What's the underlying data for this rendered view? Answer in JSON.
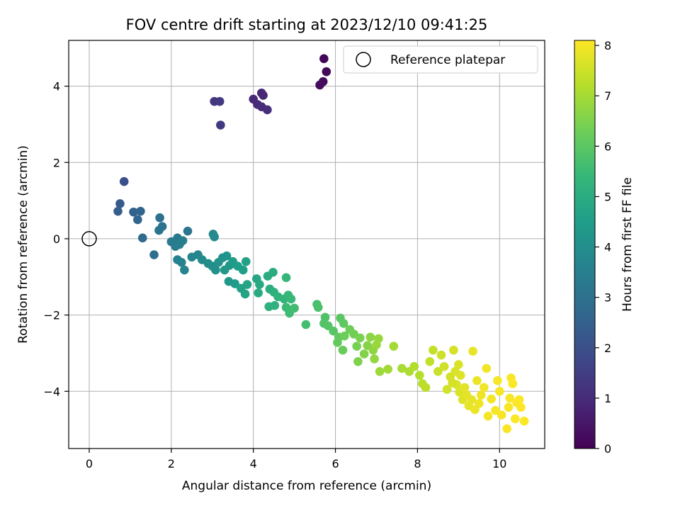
{
  "chart_data": {
    "type": "scatter",
    "title": "FOV centre drift starting at 2023/12/10 09:41:25",
    "xlabel": "Angular distance from reference (arcmin)",
    "ylabel": "Rotation from reference (arcmin)",
    "xlim": [
      -0.5,
      11.1
    ],
    "ylim": [
      -5.5,
      5.2
    ],
    "xticks": [
      0,
      2,
      4,
      6,
      8,
      10
    ],
    "yticks": [
      -4,
      -2,
      0,
      2,
      4
    ],
    "grid": true,
    "legend": {
      "placement": "top-right",
      "entries": [
        "Reference platepar"
      ]
    },
    "reference_point": {
      "x": 0,
      "y": 0
    },
    "colorbar": {
      "label": "Hours from first FF file",
      "colormap": "viridis",
      "range": [
        0,
        8.1
      ],
      "ticks": [
        0,
        1,
        2,
        3,
        4,
        5,
        6,
        7,
        8
      ],
      "colors": [
        "#440154",
        "#482878",
        "#3e4989",
        "#31688e",
        "#26828e",
        "#1f9e89",
        "#35b779",
        "#6ece58",
        "#b5de2b",
        "#fde725"
      ]
    },
    "points": [
      {
        "x": 5.72,
        "y": 4.72,
        "c": 0.1
      },
      {
        "x": 5.78,
        "y": 4.38,
        "c": 0.15
      },
      {
        "x": 5.7,
        "y": 4.12,
        "c": 0.2
      },
      {
        "x": 5.62,
        "y": 4.03,
        "c": 0.25
      },
      {
        "x": 4.2,
        "y": 3.82,
        "c": 0.8
      },
      {
        "x": 4.24,
        "y": 3.76,
        "c": 0.85
      },
      {
        "x": 4.0,
        "y": 3.66,
        "c": 0.9
      },
      {
        "x": 4.1,
        "y": 3.52,
        "c": 0.95
      },
      {
        "x": 4.2,
        "y": 3.46,
        "c": 1.0
      },
      {
        "x": 4.34,
        "y": 3.38,
        "c": 1.05
      },
      {
        "x": 3.05,
        "y": 3.6,
        "c": 1.3
      },
      {
        "x": 3.18,
        "y": 3.6,
        "c": 1.35
      },
      {
        "x": 3.2,
        "y": 2.98,
        "c": 1.4
      },
      {
        "x": 0.85,
        "y": 1.5,
        "c": 2.0
      },
      {
        "x": 0.75,
        "y": 0.92,
        "c": 2.3
      },
      {
        "x": 0.7,
        "y": 0.72,
        "c": 2.4
      },
      {
        "x": 1.08,
        "y": 0.7,
        "c": 2.5
      },
      {
        "x": 1.25,
        "y": 0.72,
        "c": 2.6
      },
      {
        "x": 1.18,
        "y": 0.5,
        "c": 2.65
      },
      {
        "x": 1.3,
        "y": 0.02,
        "c": 2.8
      },
      {
        "x": 1.58,
        "y": -0.42,
        "c": 2.9
      },
      {
        "x": 1.72,
        "y": 0.55,
        "c": 3.0
      },
      {
        "x": 1.78,
        "y": 0.32,
        "c": 3.05
      },
      {
        "x": 1.7,
        "y": 0.22,
        "c": 3.1
      },
      {
        "x": 2.4,
        "y": 0.2,
        "c": 3.2
      },
      {
        "x": 2.15,
        "y": 0.02,
        "c": 3.3
      },
      {
        "x": 2.0,
        "y": -0.08,
        "c": 3.35
      },
      {
        "x": 2.1,
        "y": -0.2,
        "c": 3.4
      },
      {
        "x": 2.2,
        "y": -0.15,
        "c": 3.45
      },
      {
        "x": 2.28,
        "y": -0.05,
        "c": 3.5
      },
      {
        "x": 2.15,
        "y": -0.55,
        "c": 3.55
      },
      {
        "x": 2.25,
        "y": -0.62,
        "c": 3.6
      },
      {
        "x": 2.32,
        "y": -0.82,
        "c": 3.65
      },
      {
        "x": 2.5,
        "y": -0.48,
        "c": 3.7
      },
      {
        "x": 2.65,
        "y": -0.42,
        "c": 3.75
      },
      {
        "x": 3.02,
        "y": 0.12,
        "c": 3.8
      },
      {
        "x": 3.05,
        "y": 0.05,
        "c": 3.85
      },
      {
        "x": 2.75,
        "y": -0.55,
        "c": 3.9
      },
      {
        "x": 2.9,
        "y": -0.65,
        "c": 3.95
      },
      {
        "x": 3.0,
        "y": -0.72,
        "c": 4.0
      },
      {
        "x": 3.08,
        "y": -0.82,
        "c": 4.05
      },
      {
        "x": 3.15,
        "y": -0.62,
        "c": 4.1
      },
      {
        "x": 3.25,
        "y": -0.5,
        "c": 4.15
      },
      {
        "x": 3.35,
        "y": -0.45,
        "c": 4.2
      },
      {
        "x": 3.42,
        "y": -0.7,
        "c": 4.25
      },
      {
        "x": 3.3,
        "y": -0.82,
        "c": 4.3
      },
      {
        "x": 3.4,
        "y": -1.12,
        "c": 4.35
      },
      {
        "x": 3.55,
        "y": -1.18,
        "c": 4.4
      },
      {
        "x": 3.5,
        "y": -0.6,
        "c": 4.45
      },
      {
        "x": 3.62,
        "y": -0.72,
        "c": 4.5
      },
      {
        "x": 3.75,
        "y": -0.82,
        "c": 4.55
      },
      {
        "x": 3.82,
        "y": -0.6,
        "c": 4.6
      },
      {
        "x": 3.7,
        "y": -1.3,
        "c": 4.65
      },
      {
        "x": 3.8,
        "y": -1.45,
        "c": 4.7
      },
      {
        "x": 3.85,
        "y": -1.2,
        "c": 4.75
      },
      {
        "x": 4.08,
        "y": -1.05,
        "c": 4.8
      },
      {
        "x": 4.15,
        "y": -1.2,
        "c": 4.85
      },
      {
        "x": 4.12,
        "y": -1.42,
        "c": 4.9
      },
      {
        "x": 4.35,
        "y": -0.98,
        "c": 4.95
      },
      {
        "x": 4.48,
        "y": -0.88,
        "c": 5.0
      },
      {
        "x": 4.4,
        "y": -1.32,
        "c": 5.05
      },
      {
        "x": 4.5,
        "y": -1.4,
        "c": 5.1
      },
      {
        "x": 4.38,
        "y": -1.78,
        "c": 5.15
      },
      {
        "x": 4.52,
        "y": -1.75,
        "c": 5.2
      },
      {
        "x": 4.6,
        "y": -1.52,
        "c": 5.25
      },
      {
        "x": 4.75,
        "y": -1.58,
        "c": 5.3
      },
      {
        "x": 4.8,
        "y": -1.02,
        "c": 5.35
      },
      {
        "x": 4.85,
        "y": -1.48,
        "c": 5.4
      },
      {
        "x": 4.92,
        "y": -1.58,
        "c": 5.45
      },
      {
        "x": 4.8,
        "y": -1.8,
        "c": 5.5
      },
      {
        "x": 4.88,
        "y": -1.95,
        "c": 5.55
      },
      {
        "x": 5.0,
        "y": -1.82,
        "c": 5.6
      },
      {
        "x": 5.28,
        "y": -2.25,
        "c": 5.65
      },
      {
        "x": 5.55,
        "y": -1.72,
        "c": 5.7
      },
      {
        "x": 5.58,
        "y": -1.8,
        "c": 5.75
      },
      {
        "x": 5.75,
        "y": -2.06,
        "c": 5.8
      },
      {
        "x": 5.72,
        "y": -2.22,
        "c": 5.85
      },
      {
        "x": 5.82,
        "y": -2.28,
        "c": 5.9
      },
      {
        "x": 5.95,
        "y": -2.42,
        "c": 5.95
      },
      {
        "x": 6.12,
        "y": -2.08,
        "c": 6.0
      },
      {
        "x": 6.2,
        "y": -2.22,
        "c": 6.05
      },
      {
        "x": 6.08,
        "y": -2.58,
        "c": 6.1
      },
      {
        "x": 6.05,
        "y": -2.72,
        "c": 6.15
      },
      {
        "x": 6.18,
        "y": -2.92,
        "c": 6.2
      },
      {
        "x": 6.22,
        "y": -2.55,
        "c": 6.25
      },
      {
        "x": 6.35,
        "y": -2.38,
        "c": 6.3
      },
      {
        "x": 6.45,
        "y": -2.5,
        "c": 6.35
      },
      {
        "x": 6.52,
        "y": -2.82,
        "c": 6.4
      },
      {
        "x": 6.6,
        "y": -2.6,
        "c": 6.45
      },
      {
        "x": 6.55,
        "y": -3.22,
        "c": 6.5
      },
      {
        "x": 6.7,
        "y": -3.02,
        "c": 6.55
      },
      {
        "x": 6.78,
        "y": -2.8,
        "c": 6.6
      },
      {
        "x": 6.85,
        "y": -2.58,
        "c": 6.65
      },
      {
        "x": 6.92,
        "y": -2.92,
        "c": 6.7
      },
      {
        "x": 6.95,
        "y": -3.15,
        "c": 6.75
      },
      {
        "x": 7.05,
        "y": -2.62,
        "c": 6.8
      },
      {
        "x": 7.0,
        "y": -2.78,
        "c": 6.85
      },
      {
        "x": 7.08,
        "y": -3.48,
        "c": 6.9
      },
      {
        "x": 7.28,
        "y": -3.42,
        "c": 6.95
      },
      {
        "x": 7.42,
        "y": -2.82,
        "c": 7.0
      },
      {
        "x": 7.62,
        "y": -3.4,
        "c": 7.05
      },
      {
        "x": 7.8,
        "y": -3.48,
        "c": 7.1
      },
      {
        "x": 7.92,
        "y": -3.35,
        "c": 7.15
      },
      {
        "x": 8.05,
        "y": -3.58,
        "c": 7.2
      },
      {
        "x": 8.12,
        "y": -3.8,
        "c": 7.25
      },
      {
        "x": 8.2,
        "y": -3.9,
        "c": 7.3
      },
      {
        "x": 8.3,
        "y": -3.22,
        "c": 7.35
      },
      {
        "x": 8.38,
        "y": -2.92,
        "c": 7.4
      },
      {
        "x": 8.5,
        "y": -3.48,
        "c": 7.45
      },
      {
        "x": 8.58,
        "y": -3.05,
        "c": 7.5
      },
      {
        "x": 8.65,
        "y": -3.35,
        "c": 7.52
      },
      {
        "x": 8.72,
        "y": -3.95,
        "c": 7.55
      },
      {
        "x": 8.8,
        "y": -3.62,
        "c": 7.58
      },
      {
        "x": 8.88,
        "y": -2.92,
        "c": 7.6
      },
      {
        "x": 8.92,
        "y": -3.48,
        "c": 7.62
      },
      {
        "x": 8.95,
        "y": -3.82,
        "c": 7.65
      },
      {
        "x": 9.02,
        "y": -4.02,
        "c": 7.68
      },
      {
        "x": 9.05,
        "y": -3.58,
        "c": 7.7
      },
      {
        "x": 9.1,
        "y": -4.22,
        "c": 7.72
      },
      {
        "x": 9.15,
        "y": -3.9,
        "c": 7.75
      },
      {
        "x": 9.2,
        "y": -4.1,
        "c": 7.78
      },
      {
        "x": 9.25,
        "y": -4.38,
        "c": 7.8
      },
      {
        "x": 9.32,
        "y": -4.22,
        "c": 7.82
      },
      {
        "x": 9.35,
        "y": -2.95,
        "c": 7.84
      },
      {
        "x": 9.4,
        "y": -4.48,
        "c": 7.86
      },
      {
        "x": 9.45,
        "y": -3.72,
        "c": 7.88
      },
      {
        "x": 9.5,
        "y": -4.32,
        "c": 7.9
      },
      {
        "x": 9.55,
        "y": -4.1,
        "c": 7.92
      },
      {
        "x": 9.62,
        "y": -3.9,
        "c": 7.94
      },
      {
        "x": 9.68,
        "y": -3.4,
        "c": 7.95
      },
      {
        "x": 9.72,
        "y": -4.65,
        "c": 7.97
      },
      {
        "x": 9.8,
        "y": -4.2,
        "c": 7.98
      },
      {
        "x": 9.9,
        "y": -4.5,
        "c": 8.0
      },
      {
        "x": 9.95,
        "y": -3.72,
        "c": 8.0
      },
      {
        "x": 10.0,
        "y": -4.0,
        "c": 8.02
      },
      {
        "x": 10.05,
        "y": -4.62,
        "c": 8.02
      },
      {
        "x": 10.18,
        "y": -4.98,
        "c": 8.04
      },
      {
        "x": 10.22,
        "y": -4.42,
        "c": 8.04
      },
      {
        "x": 10.25,
        "y": -4.18,
        "c": 8.05
      },
      {
        "x": 10.28,
        "y": -3.65,
        "c": 8.05
      },
      {
        "x": 10.32,
        "y": -3.8,
        "c": 8.06
      },
      {
        "x": 10.38,
        "y": -4.72,
        "c": 8.06
      },
      {
        "x": 10.42,
        "y": -4.3,
        "c": 8.07
      },
      {
        "x": 10.48,
        "y": -4.22,
        "c": 8.07
      },
      {
        "x": 10.52,
        "y": -4.42,
        "c": 8.08
      },
      {
        "x": 10.6,
        "y": -4.78,
        "c": 8.08
      },
      {
        "x": 8.85,
        "y": -3.78,
        "c": 7.6
      },
      {
        "x": 9.0,
        "y": -3.3,
        "c": 7.65
      }
    ]
  }
}
